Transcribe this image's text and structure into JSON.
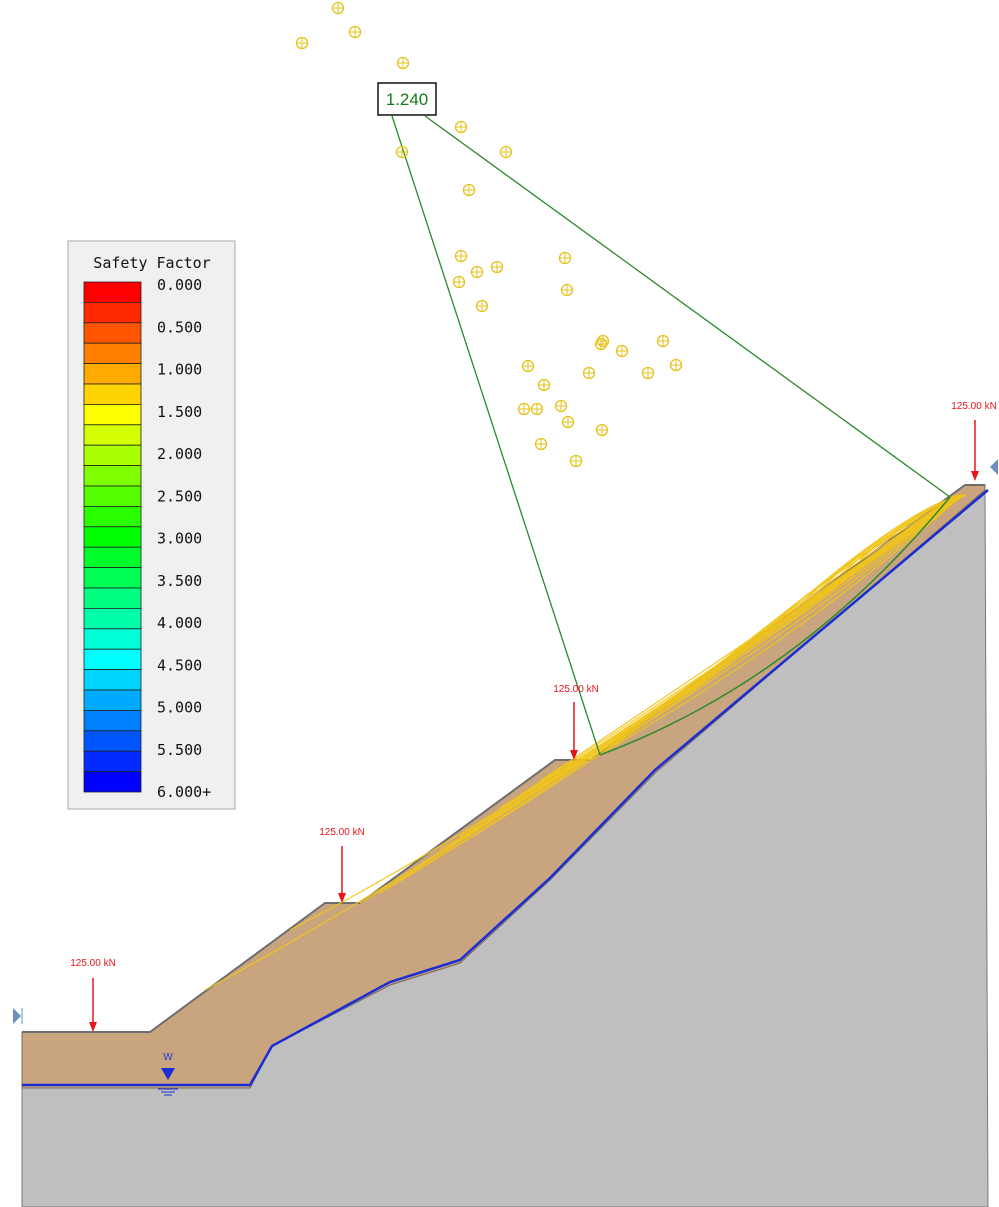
{
  "legend": {
    "title": "Safety Factor",
    "labels": [
      "0.000",
      "0.500",
      "1.000",
      "1.500",
      "2.000",
      "2.500",
      "3.000",
      "3.500",
      "4.000",
      "4.500",
      "5.000",
      "5.500",
      "6.000+"
    ],
    "colors": [
      "#ff0000",
      "#ff2a00",
      "#ff5500",
      "#ff7f00",
      "#ffaa00",
      "#ffd400",
      "#ffff00",
      "#d4ff00",
      "#aaff00",
      "#7fff00",
      "#55ff00",
      "#2aff00",
      "#00ff00",
      "#00ff2a",
      "#00ff55",
      "#00ff7f",
      "#00ffaa",
      "#00ffd4",
      "#00ffff",
      "#00d4ff",
      "#00aaff",
      "#007fff",
      "#0055ff",
      "#002aff",
      "#0000ff"
    ]
  },
  "critical_surface": {
    "factor_label": "1.240"
  },
  "loads": [
    {
      "id": "load-1",
      "label": "125.00 kN"
    },
    {
      "id": "load-2",
      "label": "125.00 kN"
    },
    {
      "id": "load-3",
      "label": "125.00 kN"
    },
    {
      "id": "load-4",
      "label": "125.00 kN"
    }
  ],
  "water_table": {
    "label": "W"
  },
  "colors": {
    "soil": "#c8a57f",
    "bedrock": "#bfbfbf",
    "water_line": "#1a2ed6",
    "slip_surfaces": "#f2c518",
    "critical": "#2a8a2a",
    "load_arrow": "#e8141c",
    "grid_centers": "#e6c21a"
  }
}
